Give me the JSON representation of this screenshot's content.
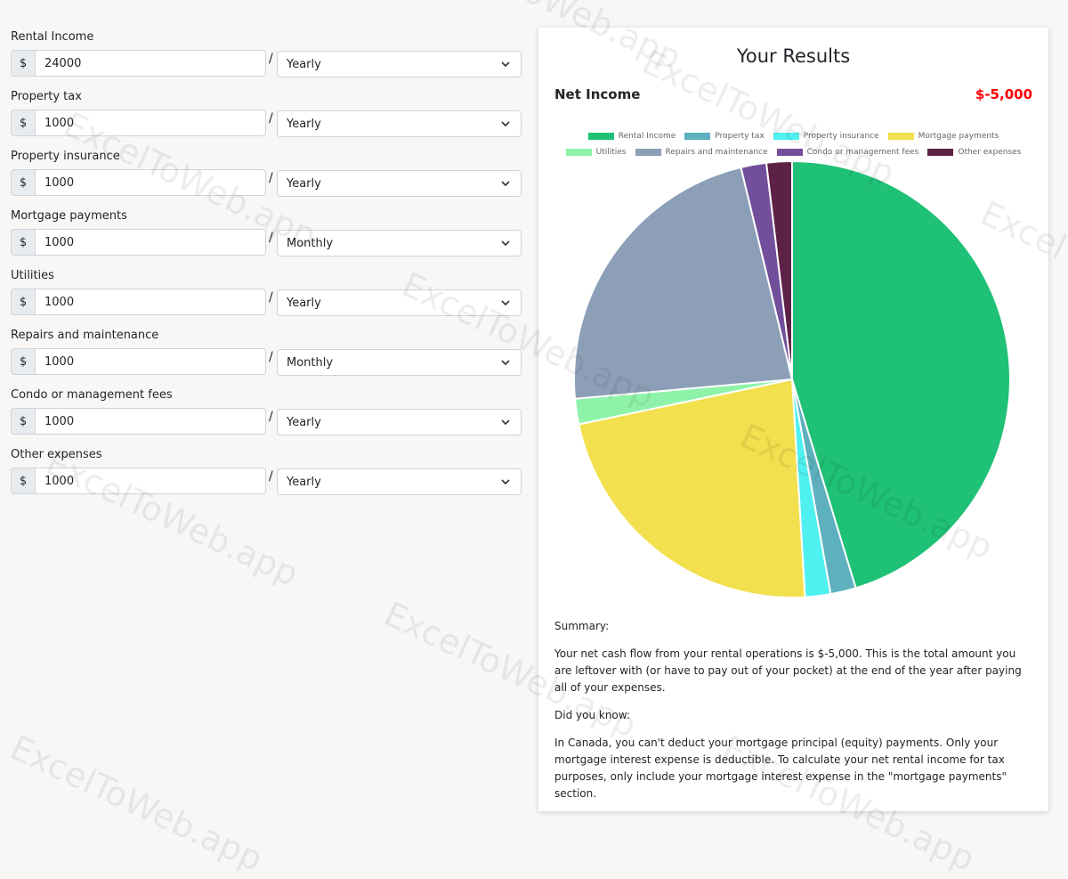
{
  "watermark": "ExcelToWeb.app",
  "currency_symbol": "$",
  "fields": [
    {
      "label": "Rental Income",
      "value": "24000",
      "period": "Yearly"
    },
    {
      "label": "Property tax",
      "value": "1000",
      "period": "Yearly"
    },
    {
      "label": "Property insurance",
      "value": "1000",
      "period": "Yearly"
    },
    {
      "label": "Mortgage payments",
      "value": "1000",
      "period": "Monthly"
    },
    {
      "label": "Utilities",
      "value": "1000",
      "period": "Yearly"
    },
    {
      "label": "Repairs and maintenance",
      "value": "1000",
      "period": "Monthly"
    },
    {
      "label": "Condo or management fees",
      "value": "1000",
      "period": "Yearly"
    },
    {
      "label": "Other expenses",
      "value": "1000",
      "period": "Yearly"
    }
  ],
  "results": {
    "title": "Your Results",
    "net_income_label": "Net Income",
    "net_income_value": "$-5,000",
    "summary_heading": "Summary:",
    "summary_text": "Your net cash flow from your rental operations is $-5,000. This is the total amount you are leftover with (or have to pay out of your pocket) at the end of the year after paying all of your expenses.",
    "did_you_know_heading": "Did you know:",
    "did_you_know_text": "In Canada, you can't deduct your mortgage principal (equity) payments. Only your mortgage interest expense is deductible. To calculate your net rental income for tax purposes, only include your mortgage interest expense in the \"mortgage payments\" section."
  },
  "chart_data": {
    "type": "pie",
    "categories": [
      "Rental Income",
      "Property tax",
      "Property insurance",
      "Mortgage payments",
      "Utilities",
      "Repairs and maintenance",
      "Condo or management fees",
      "Other expenses"
    ],
    "values": [
      24000,
      1000,
      1000,
      12000,
      1000,
      12000,
      1000,
      1000
    ],
    "colors": [
      "#1fc176",
      "#5eb0be",
      "#4ff0f0",
      "#f2e04e",
      "#8ef3a8",
      "#8c9fb7",
      "#724f9b",
      "#5e2146"
    ],
    "legend_position": "top"
  }
}
